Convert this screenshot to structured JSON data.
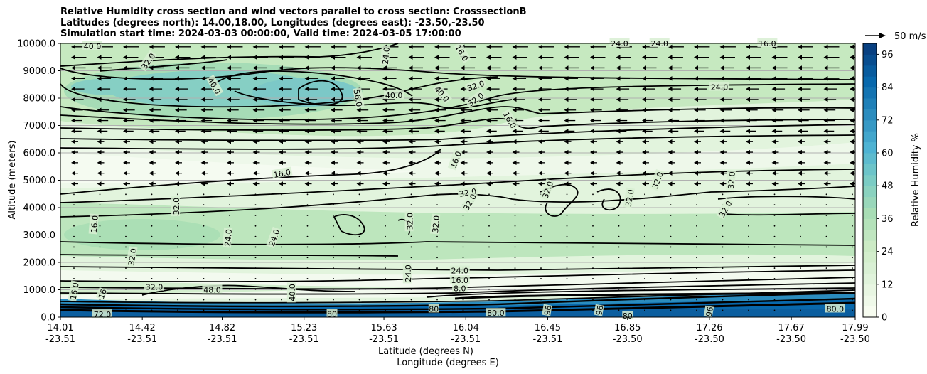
{
  "title_lines": [
    "Relative Humidity cross section and wind vectors parallel to cross section: CrosssectionB",
    "Latitudes (degrees north): 14.00,18.00, Longitudes (degrees east): -23.50,-23.50",
    "Simulation start time: 2024-03-03 00:00:00, Valid time: 2024-03-05 17:00:00"
  ],
  "chart_data": {
    "type": "contour",
    "ylabel": "Altitude (meters)",
    "xlabel_lines": [
      "Latitude (degrees N)",
      "Longitude (degrees E)"
    ],
    "ylim": [
      0,
      10000
    ],
    "y_ticks": [
      "0.0",
      "1000.0",
      "2000.0",
      "3000.0",
      "4000.0",
      "5000.0",
      "6000.0",
      "7000.0",
      "8000.0",
      "9000.0",
      "10000.0"
    ],
    "x_ticks": [
      {
        "lat": "14.01",
        "lon": "-23.51"
      },
      {
        "lat": "14.42",
        "lon": "-23.51"
      },
      {
        "lat": "14.82",
        "lon": "-23.51"
      },
      {
        "lat": "15.23",
        "lon": "-23.51"
      },
      {
        "lat": "15.63",
        "lon": "-23.51"
      },
      {
        "lat": "16.04",
        "lon": "-23.51"
      },
      {
        "lat": "16.45",
        "lon": "-23.51"
      },
      {
        "lat": "16.85",
        "lon": "-23.50"
      },
      {
        "lat": "17.26",
        "lon": "-23.50"
      },
      {
        "lat": "17.67",
        "lon": "-23.50"
      },
      {
        "lat": "17.99",
        "lon": "-23.50"
      }
    ],
    "grid": "horizontal",
    "colorbar": {
      "label": "Relative Humidity %",
      "ticks": [
        "0",
        "12",
        "24",
        "36",
        "48",
        "60",
        "72",
        "84",
        "96"
      ],
      "range": [
        0,
        100
      ],
      "colors": [
        "#f7fcf0",
        "#e0f3db",
        "#ccebc5",
        "#a8ddb5",
        "#7bccc4",
        "#4eb3d3",
        "#2b8cbe",
        "#0868ac",
        "#084081"
      ]
    },
    "quiver_key": "50 m/s",
    "contour_labels": [
      {
        "text": "32.0",
        "lat": 14.45,
        "alt": 9350,
        "rot": -55
      },
      {
        "text": "40.0",
        "lat": 14.17,
        "alt": 9900,
        "rot": 0
      },
      {
        "text": "40.0",
        "lat": 14.78,
        "alt": 8450,
        "rot": 60
      },
      {
        "text": "56.0",
        "lat": 15.5,
        "alt": 8000,
        "rot": 80
      },
      {
        "text": "40.0",
        "lat": 15.68,
        "alt": 8100,
        "rot": 0
      },
      {
        "text": "24.0",
        "lat": 15.64,
        "alt": 9550,
        "rot": -85
      },
      {
        "text": "16.0",
        "lat": 16.02,
        "alt": 9650,
        "rot": 60
      },
      {
        "text": "40.0",
        "lat": 15.92,
        "alt": 8150,
        "rot": 50
      },
      {
        "text": "32.0",
        "lat": 16.09,
        "alt": 8450,
        "rot": -20
      },
      {
        "text": "32.0",
        "lat": 16.09,
        "alt": 7950,
        "rot": -35
      },
      {
        "text": "16.0",
        "lat": 16.26,
        "alt": 7200,
        "rot": 60
      },
      {
        "text": "24.0",
        "lat": 16.81,
        "alt": 10000,
        "rot": 0
      },
      {
        "text": "24.0",
        "lat": 17.01,
        "alt": 10000,
        "rot": 0
      },
      {
        "text": "16.0",
        "lat": 17.55,
        "alt": 10000,
        "rot": 0
      },
      {
        "text": "24.0",
        "lat": 17.31,
        "alt": 8400,
        "rot": 0
      },
      {
        "text": "16.0",
        "lat": 15.12,
        "alt": 5250,
        "rot": -10
      },
      {
        "text": "16.0",
        "lat": 15.99,
        "alt": 5750,
        "rot": -70
      },
      {
        "text": "32.0",
        "lat": 16.05,
        "alt": 4550,
        "rot": -10
      },
      {
        "text": "32.0",
        "lat": 16.06,
        "alt": 4200,
        "rot": -60
      },
      {
        "text": "32.0",
        "lat": 16.45,
        "alt": 4650,
        "rot": -70
      },
      {
        "text": "32.0",
        "lat": 16.86,
        "alt": 4350,
        "rot": -80
      },
      {
        "text": "32.0",
        "lat": 17.0,
        "alt": 5000,
        "rot": -70
      },
      {
        "text": "32.0",
        "lat": 17.37,
        "alt": 5000,
        "rot": -85
      },
      {
        "text": "32.0",
        "lat": 17.34,
        "alt": 3950,
        "rot": -60
      },
      {
        "text": "32.0",
        "lat": 14.59,
        "alt": 4050,
        "rot": -90
      },
      {
        "text": "16.0",
        "lat": 14.18,
        "alt": 3400,
        "rot": -85
      },
      {
        "text": "32.0",
        "lat": 15.76,
        "alt": 3500,
        "rot": -90
      },
      {
        "text": "32.0",
        "lat": 15.89,
        "alt": 3400,
        "rot": -85
      },
      {
        "text": "24.0",
        "lat": 14.85,
        "alt": 2900,
        "rot": -85
      },
      {
        "text": "24.0",
        "lat": 15.08,
        "alt": 2900,
        "rot": -70
      },
      {
        "text": "32.0",
        "lat": 14.37,
        "alt": 2200,
        "rot": -80
      },
      {
        "text": "24.0",
        "lat": 15.75,
        "alt": 1600,
        "rot": -90
      },
      {
        "text": "24.0",
        "lat": 16.01,
        "alt": 1700,
        "rot": 0
      },
      {
        "text": "16.0",
        "lat": 16.01,
        "alt": 1350,
        "rot": 0
      },
      {
        "text": "8.0",
        "lat": 16.01,
        "alt": 1050,
        "rot": 0
      },
      {
        "text": "32.0",
        "lat": 14.48,
        "alt": 1100,
        "rot": 0
      },
      {
        "text": "48.0",
        "lat": 14.77,
        "alt": 1000,
        "rot": 0
      },
      {
        "text": "16.0",
        "lat": 14.08,
        "alt": 950,
        "rot": -80
      },
      {
        "text": "16",
        "lat": 14.22,
        "alt": 850,
        "rot": -70
      },
      {
        "text": "40.0",
        "lat": 15.17,
        "alt": 900,
        "rot": -90
      },
      {
        "text": "72.0",
        "lat": 14.22,
        "alt": 100,
        "rot": 0
      },
      {
        "text": "80",
        "lat": 15.37,
        "alt": 120,
        "rot": 0
      },
      {
        "text": "80",
        "lat": 15.88,
        "alt": 300,
        "rot": 0
      },
      {
        "text": "80.0",
        "lat": 16.19,
        "alt": 150,
        "rot": 0
      },
      {
        "text": "96",
        "lat": 16.45,
        "alt": 250,
        "rot": -80
      },
      {
        "text": "96",
        "lat": 16.71,
        "alt": 250,
        "rot": -80
      },
      {
        "text": "80",
        "lat": 16.85,
        "alt": 50,
        "rot": 0
      },
      {
        "text": "96",
        "lat": 17.26,
        "alt": 200,
        "rot": -80
      },
      {
        "text": "80.0",
        "lat": 17.89,
        "alt": 300,
        "rot": 0
      }
    ]
  }
}
